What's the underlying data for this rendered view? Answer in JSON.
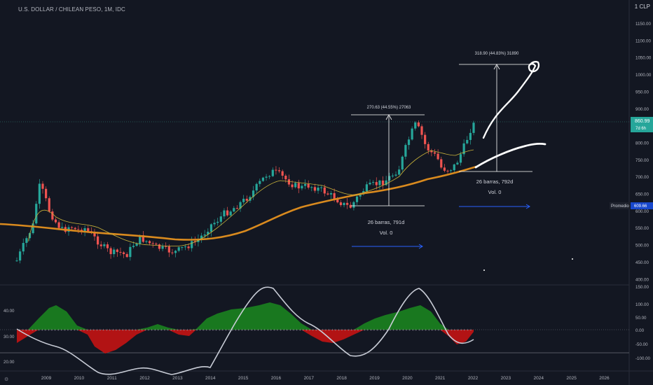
{
  "header": {
    "symbol_title": "U.S. DOLLAR / CHILEAN PESO, 1M, IDC",
    "currency_label": "1 CLP"
  },
  "price_axis": {
    "ticks": [
      "1150.00",
      "1100.00",
      "1050.00",
      "1000.00",
      "950.00",
      "900.00",
      "850.00",
      "800.00",
      "750.00",
      "700.00",
      "650.00",
      "600.00",
      "550.00",
      "500.00",
      "450.00",
      "400.00"
    ],
    "last_price": "860.99",
    "countdown": "7d 6h",
    "last_price_color": "#26a69a",
    "promedio_label": "Promedio",
    "promedio_value": "609.66"
  },
  "oscillator_axis": {
    "right_ticks": [
      "150.00",
      "100.00",
      "50.00",
      "0.00",
      "-50.00",
      "-100.00"
    ],
    "left_ticks": [
      "40.00",
      "30.00",
      "20.00"
    ]
  },
  "time_axis": {
    "labels": [
      "2009",
      "2010",
      "2011",
      "2012",
      "2013",
      "2014",
      "2015",
      "2016",
      "2017",
      "2018",
      "2019",
      "2020",
      "2021",
      "2022",
      "2023",
      "2024",
      "2025",
      "2026"
    ]
  },
  "annotations": {
    "measure1_top": "270.63 (44.55%) 27063",
    "measure1_bars": "26 barras, 791d",
    "measure1_vol": "Vol. 0",
    "measure2_top": "318.90 (44.83%) 31890",
    "measure2_bars": "26 barras, 792d",
    "measure2_vol": "Vol. 0"
  },
  "colors": {
    "background": "#131722",
    "up": "#26a69a",
    "down": "#ef5350",
    "ma_long": "#d98a1e",
    "ma_short": "#c8b23a",
    "osc_pos": "#1b8a1f",
    "osc_neg": "#c41313",
    "arrow": "#2962ff"
  }
}
